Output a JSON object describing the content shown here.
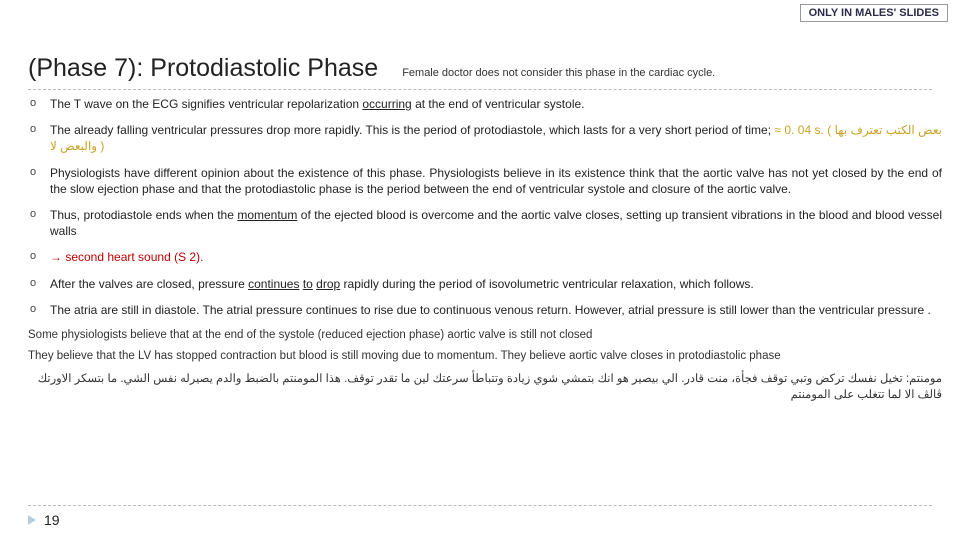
{
  "badge": "ONLY IN MALES' SLIDES",
  "title": "(Phase 7): Protodiastolic Phase",
  "title_note": "Female doctor does not consider this phase in the cardiac cycle.",
  "bullets": {
    "b1a": "The T wave on the ECG signifies ventricular repolarization ",
    "b1u": "occurring",
    "b1b": " at the end of ventricular systole.",
    "b2a": "The already falling ventricular pressures drop more rapidly. This is the period of protodiastole, which lasts for a very short period of time; ",
    "b2gold": "≈ 0. 04 s. ( بعض الكتب تعترف بها والبعض لا )",
    "b3": "Physiologists have different opinion about the existence of this phase. Physiologists  believe in its existence think that the aortic valve has not yet closed by the end of the slow ejection phase and that the protodiastolic phase is the period between the end of ventricular systole and closure of the aortic valve.",
    "b4a": "Thus, protodiastole ends when the ",
    "b4u": "momentum",
    "b4b": " of the ejected blood is overcome and the aortic valve closes, setting up transient vibrations in the blood and blood vessel walls",
    "b5": " → second heart sound (S 2).",
    "b6a": "After the valves are closed, pressure ",
    "b6u1": "continues",
    "b6b": " ",
    "b6u2": "to",
    "b6c": " ",
    "b6u3": "drop",
    "b6d": " rapidly during the period of isovolumetric ventricular relaxation, which follows.",
    "b7": "The atria are still in diastole. The atrial pressure continues to rise due to continuous venous return. However, atrial pressure is still lower than the ventricular pressure ."
  },
  "notes1": "Some physiologists believe that at the end of the systole (reduced ejection phase) aortic valve is still not closed",
  "notes2": "They believe that the LV has stopped contraction but blood is still moving due to momentum. They believe aortic valve closes in protodiastolic phase",
  "arabic": "مومنتم: تخيل نفسك تركض وتبي توقف فجأة، منت قادر. الي بيصير هو انك بتمشي شوي زيادة وتتباطأ سرعتك لين ما تقدر توقف. هذا المومنتم بالضبط والدم يصيرله نفس الشي. ما بتسكر الاورتك ڤالڤ الا لما تتغلب على المومنتم",
  "page": "19"
}
